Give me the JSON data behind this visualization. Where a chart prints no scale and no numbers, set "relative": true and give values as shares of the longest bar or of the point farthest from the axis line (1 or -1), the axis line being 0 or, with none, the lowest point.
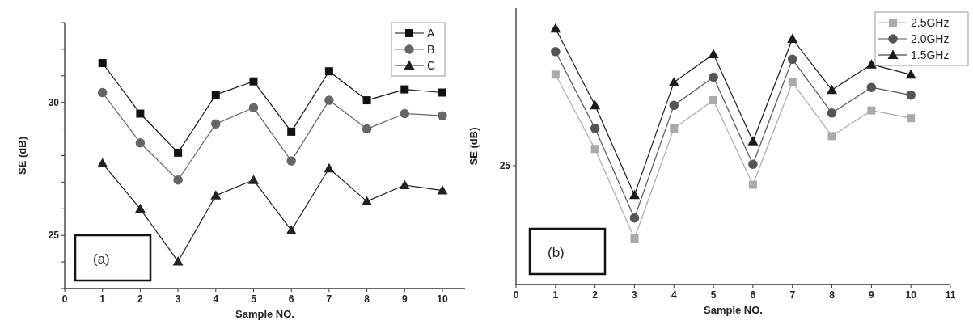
{
  "chart_data": [
    {
      "type": "line",
      "xlabel": "Sample NO.",
      "ylabel": "SE (dB)",
      "x": [
        1,
        2,
        3,
        4,
        5,
        6,
        7,
        8,
        9,
        10
      ],
      "xlim": [
        0,
        10.6
      ],
      "xticks": [
        0,
        1,
        2,
        3,
        4,
        5,
        6,
        7,
        8,
        9,
        10
      ],
      "ylim": [
        23,
        33
      ],
      "yticks": [
        {
          "value": 23,
          "label": null
        },
        {
          "value": 24,
          "label": null
        },
        25,
        {
          "value": 26,
          "label": null
        },
        {
          "value": 27,
          "label": null
        },
        {
          "value": 28,
          "label": null
        },
        {
          "value": 29,
          "label": null
        },
        30,
        {
          "value": 31,
          "label": null
        },
        {
          "value": 32,
          "label": null
        },
        {
          "value": 33,
          "label": null
        }
      ],
      "legend": "top right",
      "grid": false,
      "annotations": [
        "(a)"
      ],
      "series": [
        {
          "name": "A",
          "color": "#111111",
          "marker": "square",
          "values": [
            31.48,
            29.58,
            28.11,
            30.29,
            30.79,
            28.9,
            31.17,
            30.08,
            30.49,
            30.37
          ]
        },
        {
          "name": "B",
          "color": "#666666",
          "marker": "circle",
          "values": [
            30.37,
            28.48,
            27.08,
            29.19,
            29.8,
            27.8,
            30.08,
            29.0,
            29.58,
            29.5
          ]
        },
        {
          "name": "C",
          "color": "#222222",
          "marker": "triangle",
          "values": [
            27.71,
            26.0,
            24.02,
            26.5,
            27.08,
            25.19,
            27.52,
            26.28,
            26.89,
            26.69
          ]
        }
      ]
    },
    {
      "type": "line",
      "xlabel": "Sample NO.",
      "ylabel": "SE (dB)",
      "x": [
        1,
        2,
        3,
        4,
        5,
        6,
        7,
        8,
        9,
        10
      ],
      "xlim": [
        0,
        11
      ],
      "xticks": [
        0,
        1,
        2,
        3,
        4,
        5,
        6,
        7,
        8,
        9,
        10,
        11
      ],
      "relative": true,
      "legend": "top right",
      "grid": false,
      "annotations": [
        "(b)",
        "25"
      ],
      "series": [
        {
          "name": "2.5GHz",
          "color": "#aaaaaa",
          "marker": "square",
          "values": [
            0.82,
            0.53,
            0.18,
            0.61,
            0.72,
            0.39,
            0.79,
            0.58,
            0.68,
            0.65
          ]
        },
        {
          "name": "2.0GHz",
          "color": "#555555",
          "marker": "circle",
          "values": [
            0.91,
            0.61,
            0.26,
            0.7,
            0.81,
            0.47,
            0.88,
            0.67,
            0.77,
            0.74
          ]
        },
        {
          "name": "1.5GHz",
          "color": "#1a1a1a",
          "marker": "triangle",
          "values": [
            1.0,
            0.7,
            0.35,
            0.79,
            0.9,
            0.56,
            0.96,
            0.76,
            0.86,
            0.82
          ]
        }
      ]
    }
  ]
}
